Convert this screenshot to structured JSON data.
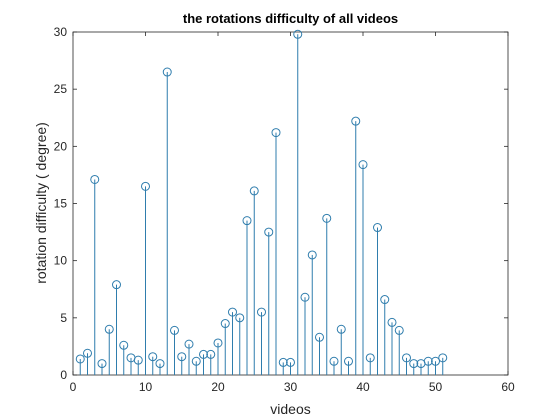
{
  "chart_data": {
    "type": "stem",
    "title": "the rotations difficulty of all videos",
    "xlabel": "videos",
    "ylabel": "rotation difficulty ( degree)",
    "xlim": [
      0,
      60
    ],
    "ylim": [
      0,
      30
    ],
    "xticks": [
      0,
      10,
      20,
      30,
      40,
      50,
      60
    ],
    "yticks": [
      0,
      5,
      10,
      15,
      20,
      25,
      30
    ],
    "grid": false,
    "legend": "none",
    "color": "#2f7dad",
    "marker": "circle",
    "x": [
      1,
      2,
      3,
      4,
      5,
      6,
      7,
      8,
      9,
      10,
      11,
      12,
      13,
      14,
      15,
      16,
      17,
      18,
      19,
      20,
      21,
      22,
      23,
      24,
      25,
      26,
      27,
      28,
      29,
      30,
      31,
      32,
      33,
      34,
      35,
      36,
      37,
      38,
      39,
      40,
      41,
      42,
      43,
      44,
      45,
      46,
      47,
      48,
      49,
      50,
      51
    ],
    "values": [
      1.4,
      1.9,
      17.1,
      1.0,
      4.0,
      7.9,
      2.6,
      1.5,
      1.3,
      16.5,
      1.6,
      1.0,
      26.5,
      3.9,
      1.6,
      2.7,
      1.2,
      1.8,
      1.8,
      2.8,
      4.5,
      5.5,
      5.0,
      13.5,
      16.1,
      5.5,
      12.5,
      21.2,
      1.1,
      1.1,
      29.8,
      6.8,
      10.5,
      3.3,
      13.7,
      1.2,
      4.0,
      1.2,
      22.2,
      18.4,
      1.5,
      12.9,
      6.6,
      4.6,
      3.9,
      1.5,
      1.0,
      1.0,
      1.2,
      1.2,
      1.5
    ]
  }
}
